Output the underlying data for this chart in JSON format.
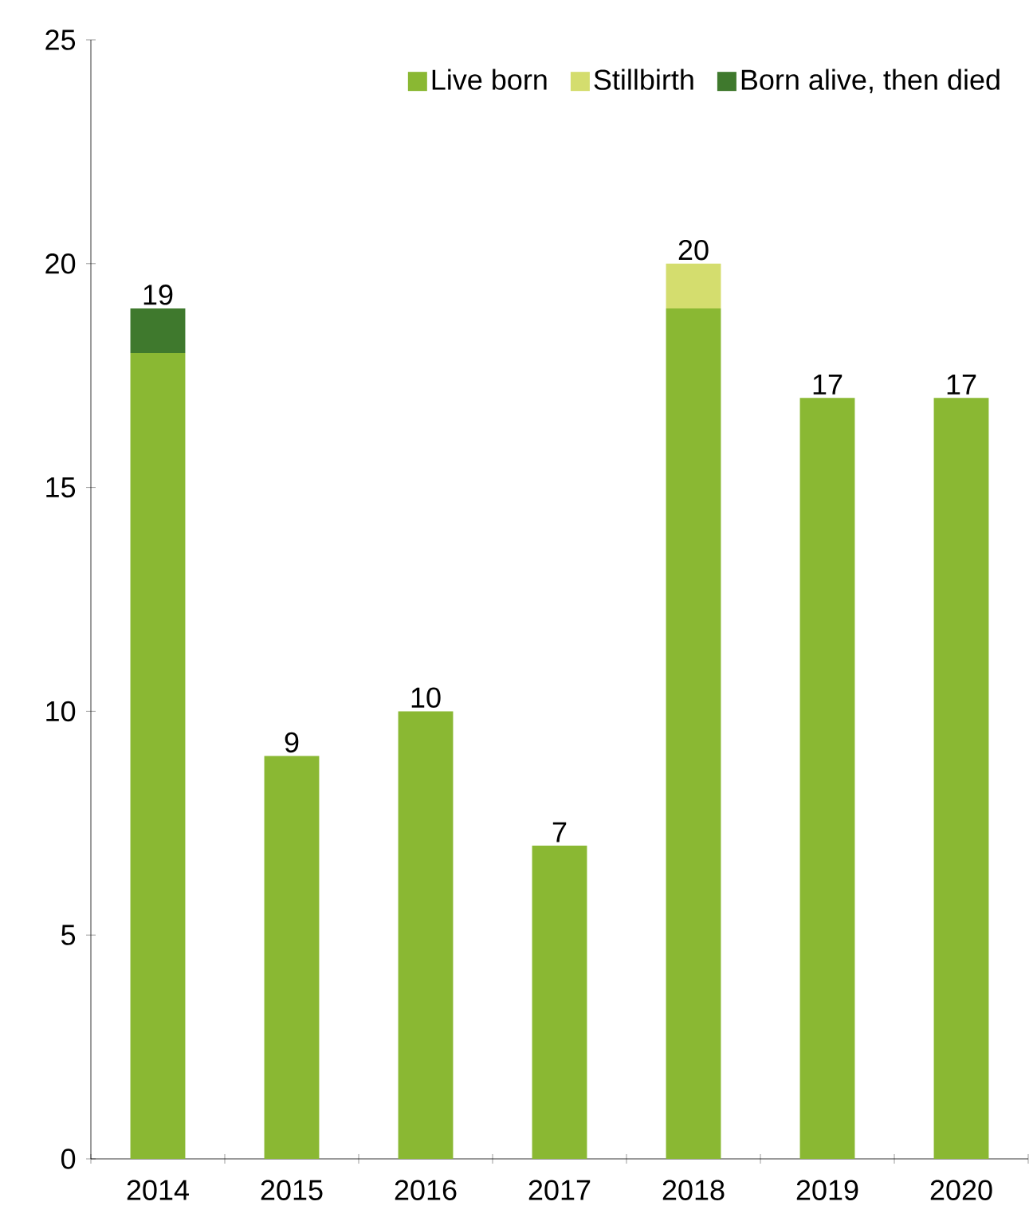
{
  "chart_data": {
    "type": "bar",
    "stacked": true,
    "categories": [
      "2014",
      "2015",
      "2016",
      "2017",
      "2018",
      "2019",
      "2020"
    ],
    "series": [
      {
        "name": "Live born",
        "color": "#8ab833",
        "values": [
          18,
          9,
          10,
          7,
          19,
          17,
          17
        ]
      },
      {
        "name": "Stillbirth",
        "color": "#d4dd6e",
        "values": [
          0,
          0,
          0,
          0,
          1,
          0,
          0
        ]
      },
      {
        "name": "Born alive, then died",
        "color": "#3f792d",
        "values": [
          1,
          0,
          0,
          0,
          0,
          0,
          0
        ]
      }
    ],
    "totals": [
      "19",
      "9",
      "10",
      "7",
      "20",
      "17",
      "17"
    ],
    "ylim": [
      0,
      25
    ],
    "yticks": [
      0,
      5,
      10,
      15,
      20,
      25
    ],
    "legend": "top right",
    "grid": false
  }
}
